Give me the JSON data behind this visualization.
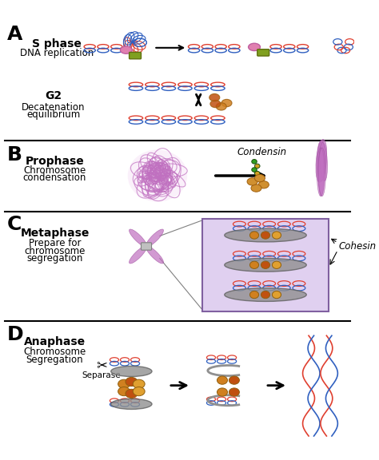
{
  "title": "",
  "background_color": "#ffffff",
  "panel_labels": [
    "A",
    "B",
    "C",
    "D"
  ],
  "panel_label_fontsize": 18,
  "panel_label_weight": "bold",
  "section_A": {
    "s_phase_label": "S phase",
    "s_phase_sublabel": "DNA replication",
    "g2_label": "G2",
    "g2_sublabel": "Decatenation\nequilibrium",
    "label_fontsize": 10,
    "label_weight_bold": "S phase",
    "dna_red": "#e04030",
    "dna_blue": "#3060c0",
    "arrow_color": "#000000"
  },
  "section_B": {
    "phase_label": "Prophase",
    "phase_sublabel": "Chromosome\ncondensation",
    "condensin_label": "Condensin",
    "chromosome_color": "#c070c0",
    "label_fontsize": 10,
    "arrow_color": "#000000"
  },
  "section_C": {
    "phase_label": "Metaphase",
    "phase_sublabel": "Prepare for\nchromosome\nsegregation",
    "cohesin_label": "Cohesin",
    "chromosome_color": "#c070c0",
    "box_color": "#d0c0e0",
    "label_fontsize": 10,
    "arrow_color": "#000000"
  },
  "section_D": {
    "phase_label": "Anaphase",
    "phase_sublabel": "Chromosome\nSegregation",
    "separase_label": "Separase",
    "label_fontsize": 10,
    "dna_red": "#e04030",
    "dna_blue": "#3060c0",
    "arrow_color": "#000000"
  }
}
